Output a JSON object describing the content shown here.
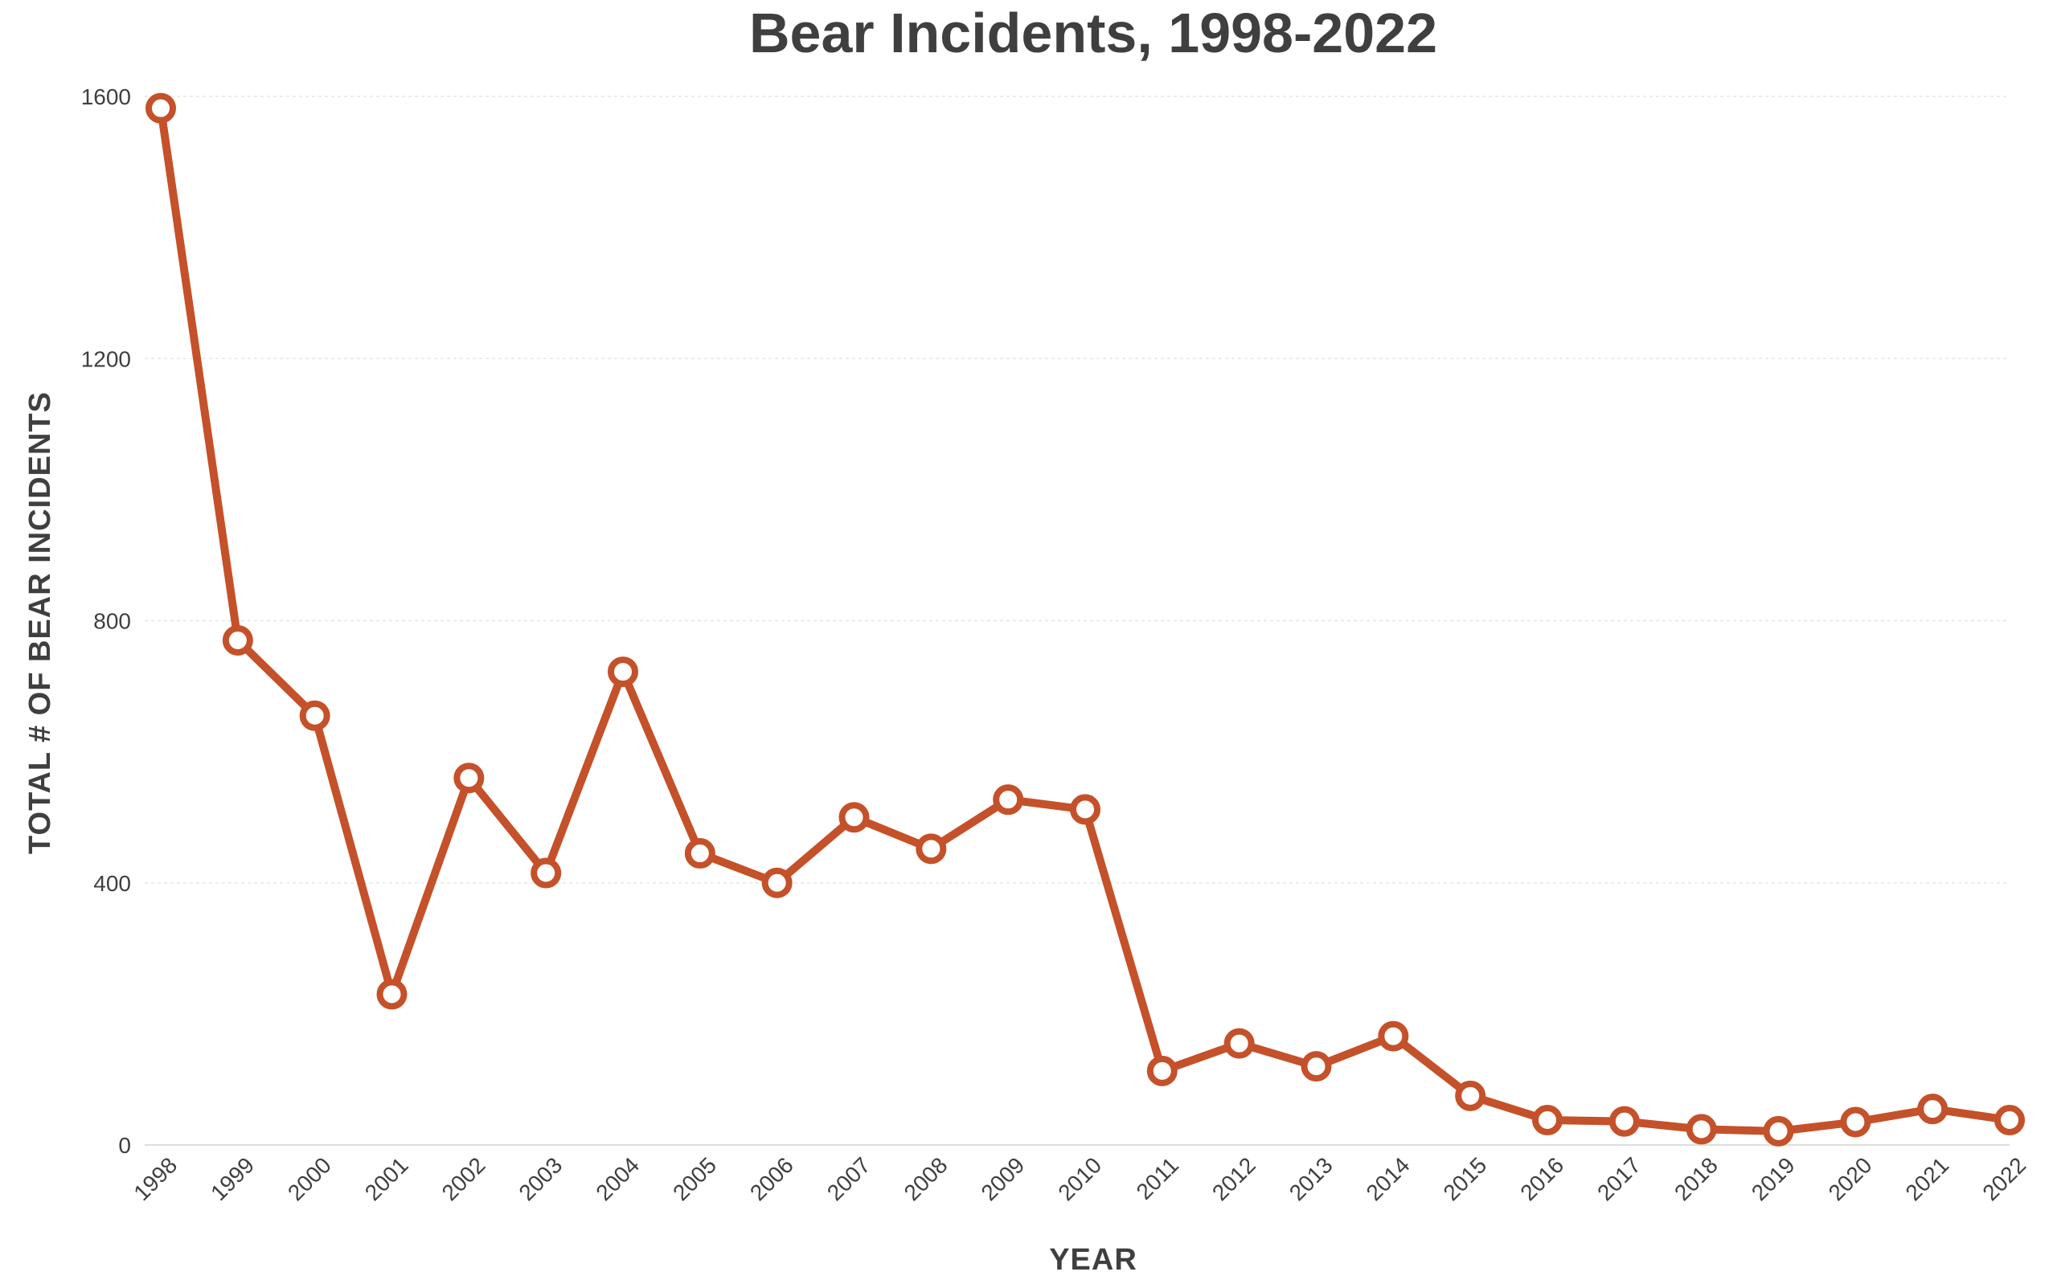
{
  "chart_data": {
    "type": "line",
    "title": "Bear Incidents, 1998-2022",
    "xlabel": "YEAR",
    "ylabel": "TOTAL # OF BEAR INCIDENTS",
    "x": [
      "1998",
      "1999",
      "2000",
      "2001",
      "2002",
      "2003",
      "2004",
      "2005",
      "2006",
      "2007",
      "2008",
      "2009",
      "2010",
      "2011",
      "2012",
      "2013",
      "2014",
      "2015",
      "2016",
      "2017",
      "2018",
      "2019",
      "2020",
      "2021",
      "2022"
    ],
    "series": [
      {
        "values": [
          1582,
          770,
          655,
          230,
          560,
          415,
          722,
          445,
          400,
          500,
          452,
          527,
          512,
          113,
          155,
          120,
          166,
          75,
          38,
          36,
          24,
          21,
          35,
          55,
          38
        ]
      }
    ],
    "ylim": [
      0,
      1600
    ],
    "yticks": [
      0,
      400,
      800,
      1200,
      1600
    ],
    "grid": true,
    "legend": "none",
    "line_color": "#c4512a"
  }
}
